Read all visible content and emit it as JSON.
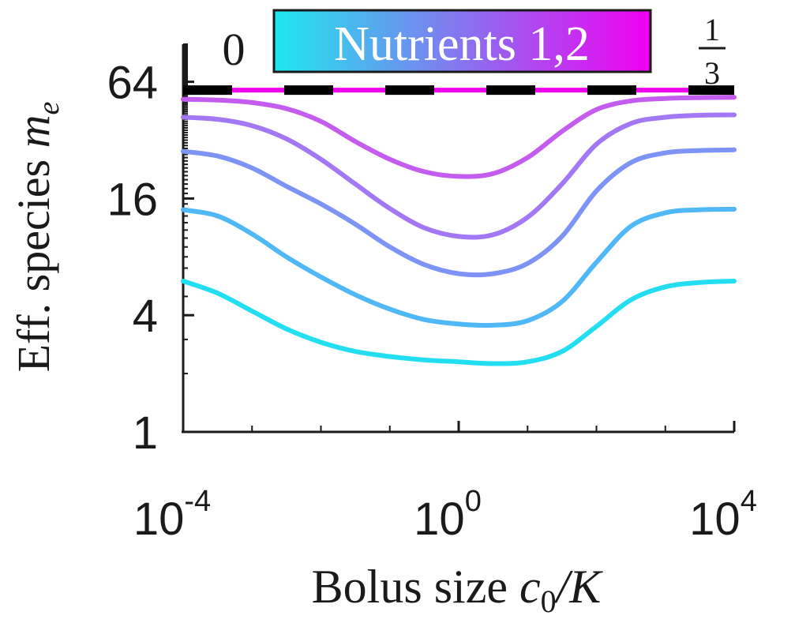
{
  "chart_data": {
    "type": "line",
    "xlabel": {
      "prefix": "Bolus size ",
      "var": "c",
      "sub": "0",
      "suffix": "/K"
    },
    "ylabel": {
      "prefix": "Eff. species ",
      "var": "m",
      "sub": "e"
    },
    "x_scale": "log10",
    "y_scale": "log2",
    "xlim": [
      0.0001,
      10000
    ],
    "ylim": [
      1,
      100
    ],
    "x_ticks": [
      {
        "value": 0.0001,
        "base": "10",
        "exp": "-4"
      },
      {
        "value": 1,
        "base": "10",
        "exp": "0"
      },
      {
        "value": 10000,
        "base": "10",
        "exp": "4"
      }
    ],
    "y_ticks": [
      {
        "value": 1,
        "label": "1"
      },
      {
        "value": 4,
        "label": "4"
      },
      {
        "value": 16,
        "label": "16"
      },
      {
        "value": 64,
        "label": "64"
      }
    ],
    "legend": {
      "title": "Nutrients 1,2",
      "placement": "top",
      "min_label": "0",
      "max_label_num": "1",
      "max_label_den": "3",
      "gradient": [
        "#1ee8ee",
        "#f000f0"
      ]
    },
    "reference_line": {
      "y": 58,
      "style": "dashed",
      "colors": [
        "#000000",
        "#f000f0"
      ]
    },
    "x": [
      0.0001,
      0.000316,
      0.001,
      0.00316,
      0.01,
      0.0316,
      0.1,
      0.316,
      1,
      3.16,
      10,
      31.6,
      100,
      316,
      1000,
      3162,
      10000
    ],
    "series": [
      {
        "color": "#22def0",
        "values": [
          6.0,
          5.2,
          4.2,
          3.4,
          2.9,
          2.6,
          2.45,
          2.35,
          2.3,
          2.25,
          2.3,
          2.6,
          3.5,
          4.8,
          5.6,
          5.9,
          6.0
        ]
      },
      {
        "color": "#50b8f6",
        "values": [
          14.0,
          13.0,
          10.5,
          8.0,
          6.3,
          5.1,
          4.3,
          3.8,
          3.6,
          3.55,
          3.75,
          4.7,
          7.5,
          11.5,
          13.5,
          14.0,
          14.1
        ]
      },
      {
        "color": "#7d94f6",
        "values": [
          28.0,
          26.5,
          23.0,
          18.5,
          15.0,
          11.8,
          9.0,
          7.3,
          6.55,
          6.55,
          7.4,
          10.2,
          17.5,
          24.5,
          27.5,
          28.3,
          28.5
        ]
      },
      {
        "color": "#a278f4",
        "values": [
          42.0,
          41.0,
          38.0,
          32.5,
          25.5,
          19.0,
          14.2,
          11.3,
          10.2,
          10.4,
          12.8,
          19.0,
          30.5,
          39.0,
          42.0,
          43.0,
          43.2
        ]
      },
      {
        "color": "#c45cf0",
        "values": [
          52.0,
          51.5,
          50.0,
          46.5,
          40.0,
          31.5,
          25.5,
          22.0,
          20.8,
          21.5,
          26.0,
          35.5,
          46.0,
          51.0,
          52.5,
          53.0,
          53.2
        ]
      }
    ]
  }
}
